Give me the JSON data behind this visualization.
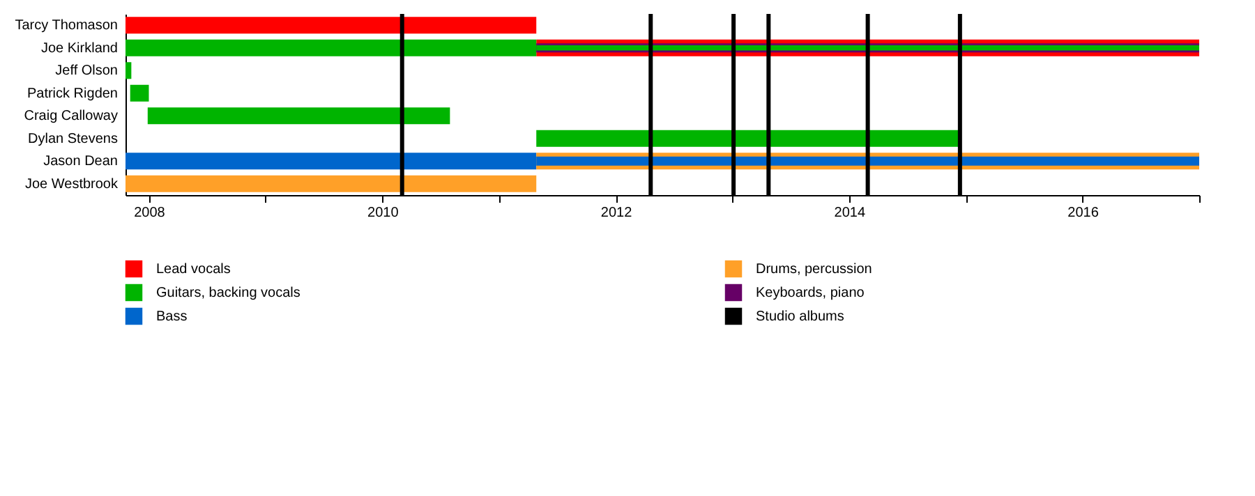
{
  "chart_data": {
    "type": "bar",
    "orientation": "horizontal",
    "categories": [
      "Tarcy Thomason",
      "Joe Kirkland",
      "Jeff Olson",
      "Patrick Rigden",
      "Craig Calloway",
      "Dylan Stevens",
      "Jason Dean",
      "Joe Westbrook"
    ],
    "series": [
      {
        "name": "Lead vocals",
        "color": "#ff0000",
        "base": [
          2007.8,
          2011.32,
          null,
          null,
          null,
          null,
          null,
          null
        ],
        "values": [
          3.52,
          5.68,
          null,
          null,
          null,
          null,
          null,
          null
        ]
      },
      {
        "name": "Guitars, backing vocals",
        "color": "#00b400",
        "base": [
          null,
          2007.8,
          2007.8,
          2007.84,
          2007.99,
          2011.32,
          null,
          null
        ],
        "values": [
          null,
          3.52,
          0.05,
          0.16,
          2.59,
          3.63,
          null,
          null
        ]
      },
      {
        "name": "Bass",
        "color": "#0066cc",
        "base": [
          null,
          null,
          null,
          null,
          null,
          null,
          2007.8,
          null
        ],
        "values": [
          null,
          null,
          null,
          null,
          null,
          null,
          3.52,
          null
        ]
      },
      {
        "name": "Drums, percussion",
        "color": "#ffa028",
        "base": [
          null,
          null,
          null,
          null,
          null,
          null,
          2011.32,
          2007.8
        ],
        "values": [
          null,
          null,
          null,
          null,
          null,
          null,
          5.68,
          3.52
        ]
      },
      {
        "name": "Keyboards, piano",
        "color": "#660066",
        "base": [
          null,
          2011.32,
          null,
          null,
          null,
          null,
          null,
          null
        ],
        "values": [
          null,
          5.68,
          null,
          null,
          null,
          null,
          null,
          null
        ]
      },
      {
        "color": "#00b400",
        "base": [
          null,
          2011.32,
          null,
          null,
          null,
          null,
          null,
          null
        ],
        "values": [
          null,
          5.68,
          null,
          null,
          null,
          null,
          null,
          null
        ]
      },
      {
        "color": "#0066cc",
        "base": [
          null,
          null,
          null,
          null,
          null,
          null,
          2011.32,
          null
        ],
        "values": [
          null,
          null,
          null,
          null,
          null,
          null,
          5.68,
          null
        ]
      }
    ],
    "ref_lines": [
      {
        "axis": "x",
        "value": 2010.17,
        "label": "Studio albums",
        "color": "#000000"
      },
      {
        "axis": "x",
        "value": 2012.3,
        "color": "#000000"
      },
      {
        "axis": "x",
        "value": 2013.01,
        "color": "#000000"
      },
      {
        "axis": "x",
        "value": 2013.31,
        "color": "#000000"
      },
      {
        "axis": "x",
        "value": 2014.16,
        "color": "#000000"
      },
      {
        "axis": "x",
        "value": 2014.95,
        "color": "#000000"
      }
    ],
    "xlim": [
      2007.8,
      2017.0
    ],
    "xticks": [
      2008,
      {
        "value": 2009,
        "label": null
      },
      2010,
      {
        "value": 2011,
        "label": null
      },
      2012,
      {
        "value": 2013,
        "label": null
      },
      2014,
      {
        "value": 2015,
        "label": null
      },
      2016,
      {
        "value": 2017,
        "label": null
      }
    ],
    "grid": false,
    "legend": "bottom"
  }
}
